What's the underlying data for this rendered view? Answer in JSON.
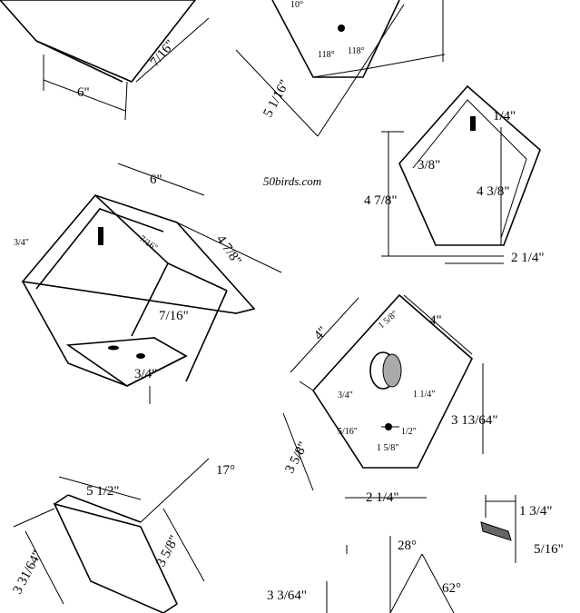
{
  "site": "50birds.com",
  "dims": {
    "roof_width": "6\"",
    "roof_depth": "7/16\"",
    "side_len": "5 1/16\"",
    "angle_left": "118°",
    "angle_right": "118°",
    "angle_top": "10°",
    "back_top": "1/4\"",
    "back_inner": "3/8\"",
    "back_height": "4 7/8\"",
    "back_height2": "4 3/8\"",
    "back_bottom": "2 1/4\"",
    "house_width": "6\"",
    "house_depth": "4 7/8\"",
    "house_side": "3/4\"",
    "house_inner": "7/16\"",
    "house_thick": "7/16\"",
    "house_floor": "3/4\"",
    "front_left": "4\"",
    "front_right": "4\"",
    "front_hole": "1 5/8\"",
    "front_thick": "3/4\"",
    "front_hole_off": "1 1/4\"",
    "front_height": "3 13/64\"",
    "front_perch": "5/16\"",
    "front_perch2": "1/2\"",
    "front_perch_off": "1 5/8\"",
    "front_side": "3 5/8\"",
    "front_bottom": "2 1/4\"",
    "side2_width": "5 1/2\"",
    "side2_angle": "17°",
    "side2_height": "3 5/8\"",
    "side2_left": "3 31/64\"",
    "dowel_len": "1 3/4\"",
    "dowel_dia": "5/16\"",
    "angle_28": "28°",
    "angle_62": "62°",
    "h_3364": "3 3/64\""
  }
}
